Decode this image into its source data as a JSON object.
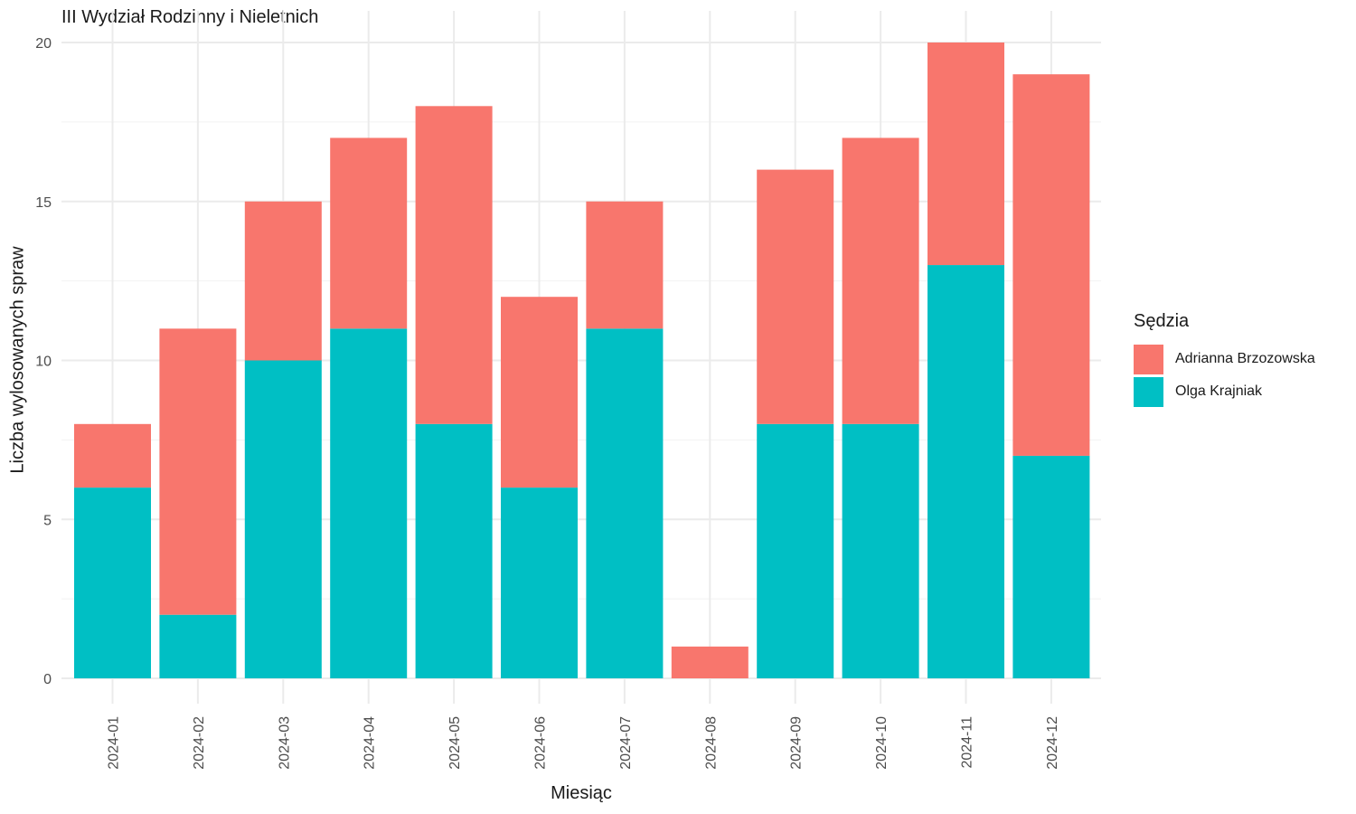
{
  "chart_data": {
    "type": "bar",
    "stacked": true,
    "title": "III Wydział Rodzinny i Nieletnich",
    "xlabel": "Miesiąc",
    "ylabel": "Liczba wylosowanych spraw",
    "categories": [
      "2024-01",
      "2024-02",
      "2024-03",
      "2024-04",
      "2024-05",
      "2024-06",
      "2024-07",
      "2024-08",
      "2024-09",
      "2024-10",
      "2024-11",
      "2024-12"
    ],
    "series": [
      {
        "name": "Olga Krajniak",
        "color": "#00BFC4",
        "values": [
          6,
          2,
          10,
          11,
          8,
          6,
          11,
          0,
          8,
          8,
          13,
          7
        ]
      },
      {
        "name": "Adrianna Brzozowska",
        "color": "#F8766D",
        "values": [
          2,
          9,
          5,
          6,
          10,
          6,
          4,
          1,
          8,
          9,
          7,
          12
        ]
      }
    ],
    "ylim": [
      0,
      20
    ],
    "yticks": [
      0,
      5,
      10,
      15,
      20
    ],
    "grid": true,
    "legend": {
      "title": "Sędzia",
      "position": "right",
      "items": [
        {
          "label": "Adrianna Brzozowska",
          "color": "#F8766D"
        },
        {
          "label": "Olga Krajniak",
          "color": "#00BFC4"
        }
      ]
    }
  }
}
